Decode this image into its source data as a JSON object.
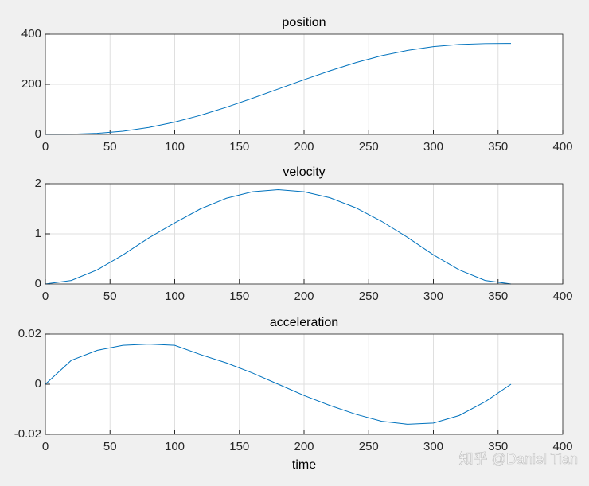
{
  "chart_data": [
    {
      "type": "line",
      "title": "position",
      "x": [
        0,
        20,
        40,
        60,
        80,
        100,
        120,
        140,
        160,
        180,
        200,
        220,
        240,
        260,
        280,
        300,
        320,
        340,
        360
      ],
      "series": [
        {
          "color": "#0072bd",
          "values": [
            0,
            0.7,
            4.2,
            12.8,
            27.8,
            49.2,
            76.4,
            108.5,
            144,
            181.2,
            218.4,
            254,
            286.4,
            314.2,
            335.3,
            350.4,
            359,
            362.5,
            363.2
          ]
        }
      ],
      "xlim": [
        0,
        400
      ],
      "xticks": [
        0,
        50,
        100,
        150,
        200,
        250,
        300,
        350,
        400
      ],
      "ylim": [
        0,
        400
      ],
      "yticks": [
        0,
        200,
        400
      ],
      "grid": true
    },
    {
      "type": "line",
      "title": "velocity",
      "x": [
        0,
        20,
        40,
        60,
        80,
        100,
        120,
        140,
        160,
        180,
        200,
        220,
        240,
        260,
        280,
        300,
        320,
        340,
        360
      ],
      "series": [
        {
          "color": "#0072bd",
          "values": [
            0,
            0.07,
            0.28,
            0.58,
            0.92,
            1.22,
            1.5,
            1.71,
            1.84,
            1.88,
            1.84,
            1.72,
            1.52,
            1.25,
            0.93,
            0.58,
            0.28,
            0.07,
            0
          ]
        }
      ],
      "xlim": [
        0,
        400
      ],
      "xticks": [
        0,
        50,
        100,
        150,
        200,
        250,
        300,
        350,
        400
      ],
      "ylim": [
        0,
        2
      ],
      "yticks": [
        0,
        1,
        2
      ],
      "grid": true
    },
    {
      "type": "line",
      "title": "acceleration",
      "x_label": "time",
      "x": [
        0,
        20,
        40,
        60,
        80,
        100,
        120,
        140,
        160,
        180,
        200,
        220,
        240,
        260,
        280,
        300,
        320,
        340,
        360
      ],
      "series": [
        {
          "color": "#0072bd",
          "values": [
            0,
            0.0095,
            0.0135,
            0.0155,
            0.016,
            0.0155,
            0.0118,
            0.0085,
            0.0045,
            0,
            -0.0045,
            -0.0085,
            -0.012,
            -0.0148,
            -0.016,
            -0.0155,
            -0.0125,
            -0.007,
            0
          ]
        }
      ],
      "xlim": [
        0,
        400
      ],
      "xticks": [
        0,
        50,
        100,
        150,
        200,
        250,
        300,
        350,
        400
      ],
      "ylim": [
        -0.02,
        0.02
      ],
      "yticks": [
        -0.02,
        0,
        0.02
      ],
      "grid": true
    }
  ],
  "watermark": "知乎 @Daniel Tian"
}
